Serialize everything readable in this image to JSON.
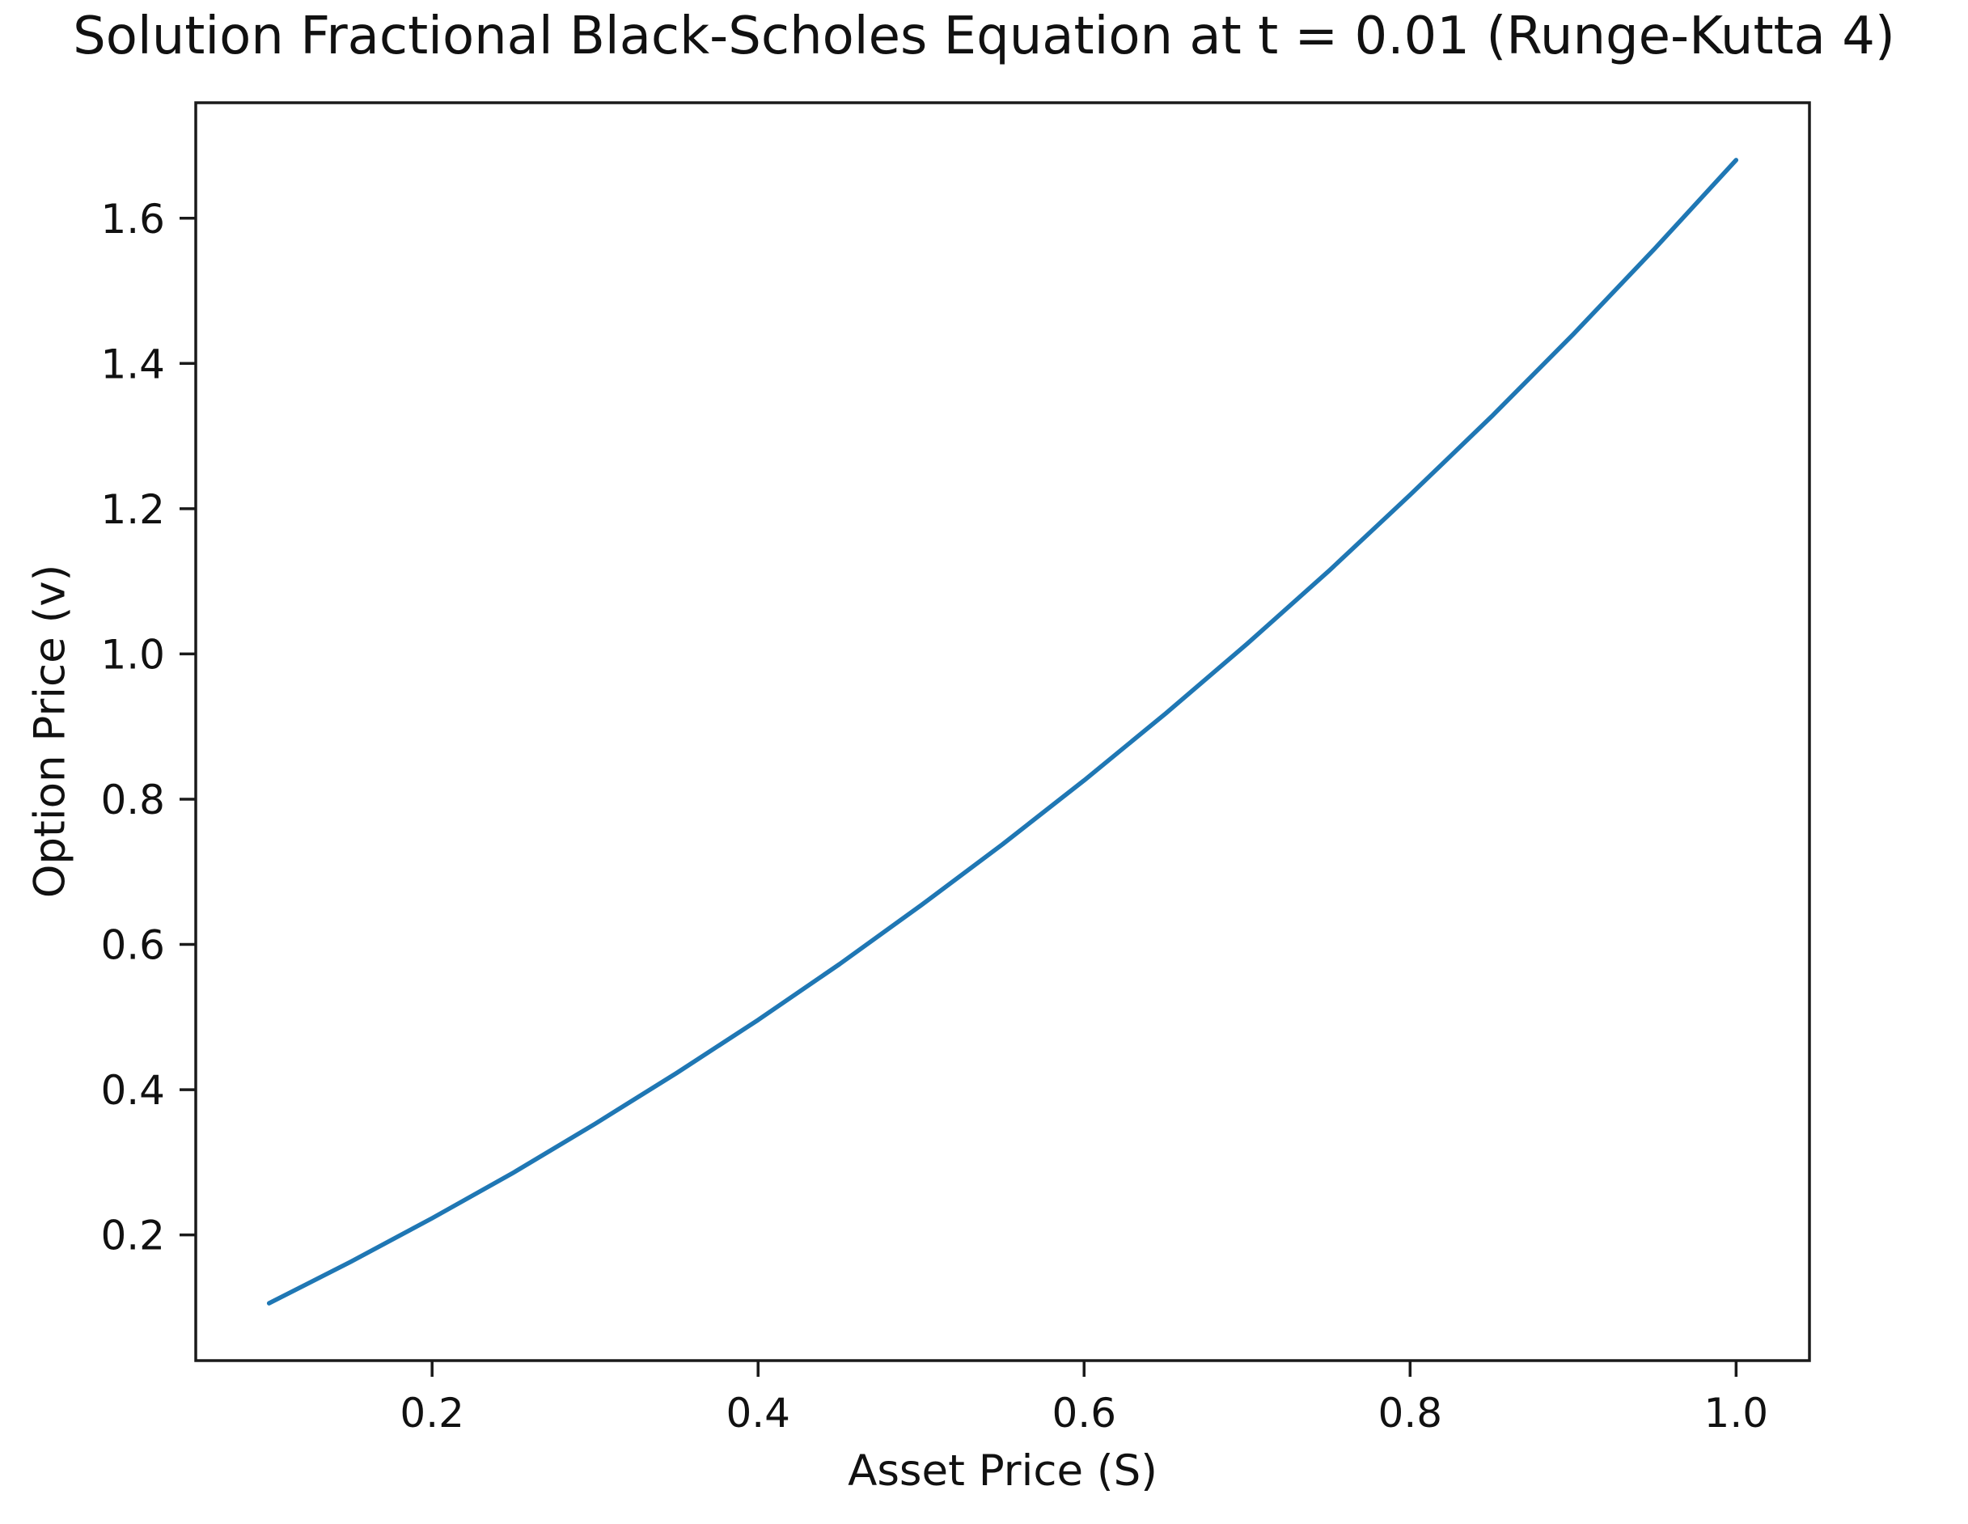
{
  "page": {
    "background_color": "#ffffff",
    "text_color": "#111111",
    "axis_color": "#1a1a1a"
  },
  "chart_data": {
    "type": "line",
    "title": "Solution Fractional Black-Scholes Equation at t = 0.01 (Runge-Kutta 4)",
    "xlabel": "Asset Price (S)",
    "ylabel": "Option Price (v)",
    "xlim": [
      0.055,
      1.045
    ],
    "ylim": [
      0.027,
      1.759
    ],
    "xticks": [
      0.2,
      0.4,
      0.6,
      0.8,
      1.0
    ],
    "yticks": [
      0.2,
      0.4,
      0.6,
      0.8,
      1.0,
      1.2,
      1.4,
      1.6
    ],
    "tick_format_decimals": 1,
    "grid": false,
    "legend": "none",
    "series": [
      {
        "color": "#1f77b4",
        "x": [
          0.1,
          0.15,
          0.2,
          0.25,
          0.3,
          0.35,
          0.4,
          0.45,
          0.5,
          0.55,
          0.6,
          0.65,
          0.7,
          0.75,
          0.8,
          0.85,
          0.9,
          0.95,
          1.0
        ],
        "y": [
          0.106,
          0.163,
          0.223,
          0.286,
          0.353,
          0.423,
          0.496,
          0.573,
          0.654,
          0.738,
          0.826,
          0.918,
          1.014,
          1.114,
          1.219,
          1.327,
          1.44,
          1.558,
          1.68
        ]
      }
    ]
  }
}
